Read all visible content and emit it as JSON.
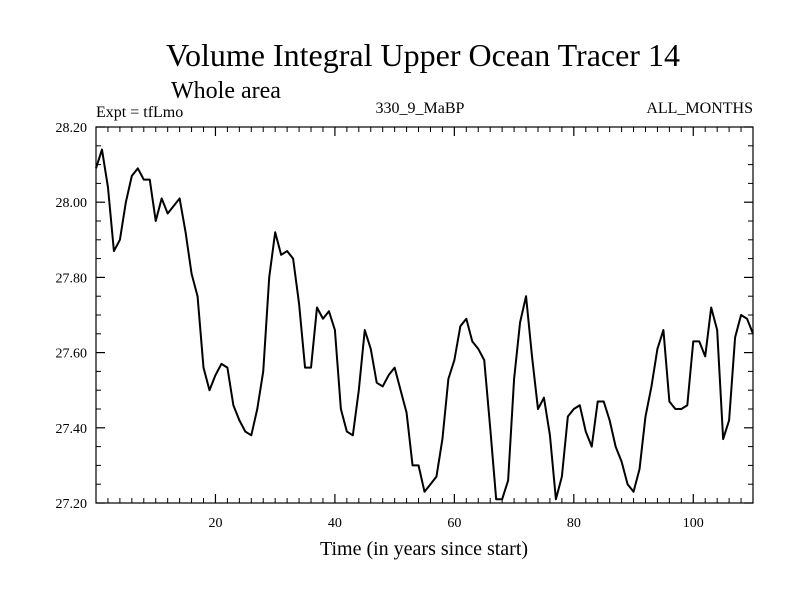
{
  "chart_data": {
    "type": "line",
    "title": "Volume Integral Upper Ocean Tracer 14",
    "subtitle": "Whole area",
    "left_label": "Expt = tfLmo",
    "center_label": "330_9_MaBP",
    "right_label": "ALL_MONTHS",
    "xlabel": "Time (in years since start)",
    "ylabel": "",
    "xlim": [
      0,
      110
    ],
    "ylim": [
      27.2,
      28.2
    ],
    "x_ticks": [
      20,
      40,
      60,
      80,
      100
    ],
    "x_tick_labels": [
      "20",
      "40",
      "60",
      "80",
      "100"
    ],
    "y_ticks": [
      27.2,
      27.4,
      27.6,
      27.8,
      28.0,
      28.2
    ],
    "y_tick_labels": [
      "27.20",
      "27.40",
      "27.60",
      "27.80",
      "28.00",
      "28.20"
    ],
    "grid": false,
    "series": [
      {
        "name": "Tracer 14",
        "x": [
          0,
          1,
          2,
          3,
          4,
          5,
          6,
          7,
          8,
          9,
          10,
          11,
          12,
          13,
          14,
          15,
          16,
          17,
          18,
          19,
          20,
          21,
          22,
          23,
          24,
          25,
          26,
          27,
          28,
          29,
          30,
          31,
          32,
          33,
          34,
          35,
          36,
          37,
          38,
          39,
          40,
          41,
          42,
          43,
          44,
          45,
          46,
          47,
          48,
          49,
          50,
          51,
          52,
          53,
          54,
          55,
          56,
          57,
          58,
          59,
          60,
          61,
          62,
          63,
          64,
          65,
          66,
          67,
          68,
          69,
          70,
          71,
          72,
          73,
          74,
          75,
          76,
          77,
          78,
          79,
          80,
          81,
          82,
          83,
          84,
          85,
          86,
          87,
          88,
          89,
          90,
          91,
          92,
          93,
          94,
          95,
          96,
          97,
          98,
          99,
          100,
          101,
          102,
          103,
          104,
          105,
          106,
          107,
          108,
          109,
          110
        ],
        "values": [
          28.09,
          28.14,
          28.04,
          27.87,
          27.9,
          28.0,
          28.07,
          28.09,
          28.06,
          28.06,
          27.95,
          28.01,
          27.97,
          27.99,
          28.01,
          27.92,
          27.81,
          27.75,
          27.56,
          27.5,
          27.54,
          27.57,
          27.56,
          27.46,
          27.42,
          27.39,
          27.38,
          27.45,
          27.55,
          27.8,
          27.92,
          27.86,
          27.87,
          27.85,
          27.73,
          27.56,
          27.56,
          27.72,
          27.69,
          27.71,
          27.66,
          27.45,
          27.39,
          27.38,
          27.5,
          27.66,
          27.61,
          27.52,
          27.51,
          27.54,
          27.56,
          27.5,
          27.44,
          27.3,
          27.3,
          27.23,
          27.25,
          27.27,
          27.37,
          27.53,
          27.58,
          27.67,
          27.69,
          27.63,
          27.61,
          27.58,
          27.4,
          27.21,
          27.21,
          27.26,
          27.53,
          27.68,
          27.75,
          27.59,
          27.45,
          27.48,
          27.38,
          27.21,
          27.27,
          27.43,
          27.45,
          27.46,
          27.39,
          27.35,
          27.47,
          27.47,
          27.42,
          27.35,
          27.31,
          27.25,
          27.23,
          27.29,
          27.43,
          27.51,
          27.61,
          27.66,
          27.47,
          27.45,
          27.45,
          27.46,
          27.63,
          27.63,
          27.59,
          27.72,
          27.66,
          27.37,
          27.42,
          27.64,
          27.7,
          27.69,
          27.65
        ]
      }
    ]
  }
}
